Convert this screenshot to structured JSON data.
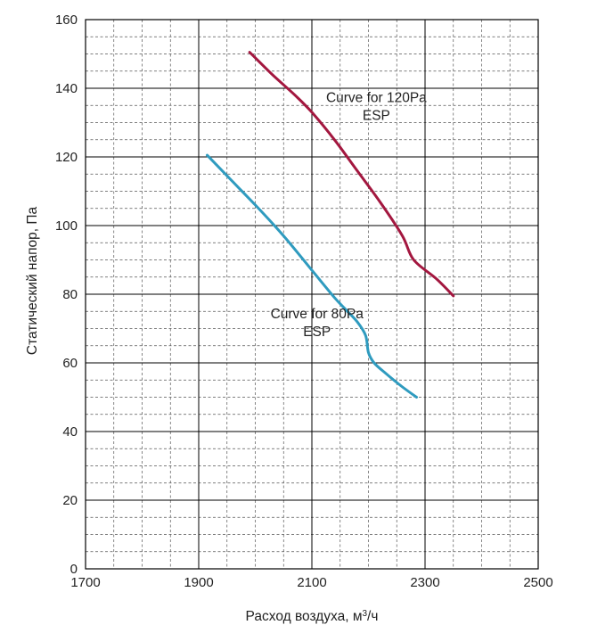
{
  "chart_data": {
    "type": "line",
    "title": "",
    "xlabel": "Расход воздуха, м",
    "xlabel_sup": "3",
    "xlabel_suffix": "/ч",
    "ylabel": "Статический напор, Па",
    "xlim": [
      1700,
      2500
    ],
    "ylim": [
      0,
      160
    ],
    "x_ticks": [
      1700,
      1900,
      2100,
      2300,
      2500
    ],
    "y_ticks": [
      0,
      20,
      40,
      60,
      80,
      100,
      120,
      140,
      160
    ],
    "x_minor_step": 50,
    "y_minor_step": 5,
    "grid": true,
    "series": [
      {
        "color": "#a3173f",
        "points": [
          [
            1990,
            150.5
          ],
          [
            2030,
            144
          ],
          [
            2070,
            138
          ],
          [
            2100,
            133
          ],
          [
            2140,
            125
          ],
          [
            2180,
            116
          ],
          [
            2220,
            107
          ],
          [
            2260,
            97
          ],
          [
            2280,
            90
          ],
          [
            2320,
            84.5
          ],
          [
            2350,
            79.5
          ]
        ]
      },
      {
        "color": "#2f9bbf",
        "points": [
          [
            1915,
            120.5
          ],
          [
            1950,
            114.5
          ],
          [
            2000,
            106
          ],
          [
            2050,
            97
          ],
          [
            2100,
            87
          ],
          [
            2140,
            79
          ],
          [
            2160,
            75.5
          ],
          [
            2180,
            72
          ],
          [
            2195,
            68
          ],
          [
            2200,
            63
          ],
          [
            2210,
            60
          ],
          [
            2230,
            57
          ],
          [
            2260,
            53
          ],
          [
            2285,
            50
          ]
        ]
      }
    ],
    "annotations": [
      {
        "lines": [
          "Curve for 120Pa",
          "ESP"
        ],
        "x": 2214,
        "y": 136
      },
      {
        "lines": [
          "Curve for 80Pa",
          "ESP"
        ],
        "x": 2109,
        "y": 73
      }
    ]
  }
}
